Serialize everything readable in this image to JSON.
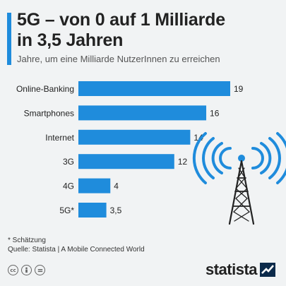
{
  "header": {
    "title_line1": "5G – von 0 auf 1 Milliarde",
    "title_line2": "in 3,5 Jahren",
    "subtitle": "Jahre, um eine Milliarde NutzerInnen zu erreichen"
  },
  "footer": {
    "note": "* Schätzung",
    "source": "Quelle: Statista | A Mobile Connected World",
    "brand": "statista",
    "license_icons": [
      "cc-icon",
      "by-icon",
      "nd-icon"
    ]
  },
  "colors": {
    "bar": "#1f8cdc",
    "accent": "#1f8cdc",
    "background": "#f1f3f4"
  },
  "chart_data": {
    "type": "bar",
    "orientation": "horizontal",
    "categories": [
      "Online-Banking",
      "Smartphones",
      "Internet",
      "3G",
      "4G",
      "5G*"
    ],
    "values": [
      19,
      16,
      14,
      12,
      4,
      3.5
    ],
    "value_labels": [
      "19",
      "16",
      "14",
      "12",
      "4",
      "3,5"
    ],
    "title": "5G – von 0 auf 1 Milliarde in 3,5 Jahren",
    "subtitle": "Jahre, um eine Milliarde NutzerInnen zu erreichen",
    "xlim": [
      0,
      19
    ],
    "grid": false,
    "legend": "none"
  }
}
